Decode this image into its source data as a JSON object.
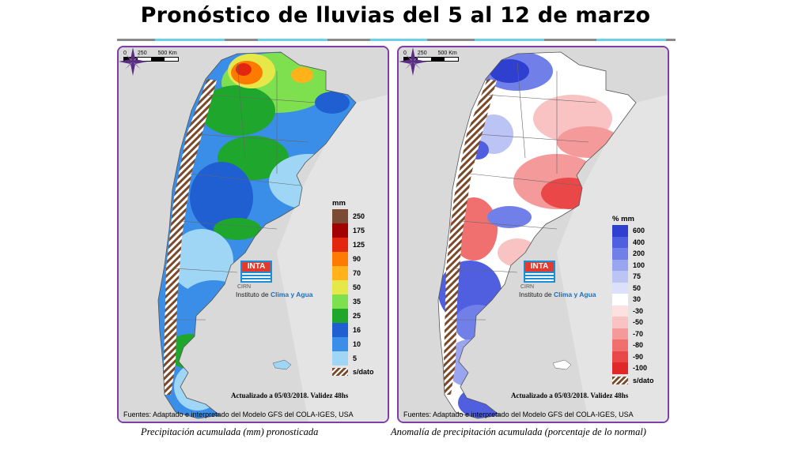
{
  "title": "Pronóstico de lluvias del 5 al 12 de marzo",
  "panels": {
    "left": {
      "scale": {
        "labels": [
          "0",
          "250",
          "500 Km"
        ]
      },
      "legend": {
        "unit": "mm",
        "items": [
          {
            "label": "250",
            "color": "#7a4a32"
          },
          {
            "label": "175",
            "color": "#a30000"
          },
          {
            "label": "125",
            "color": "#e3260e"
          },
          {
            "label": "90",
            "color": "#ff7a00"
          },
          {
            "label": "70",
            "color": "#ffb21a"
          },
          {
            "label": "50",
            "color": "#e6e84a"
          },
          {
            "label": "35",
            "color": "#7fe04f"
          },
          {
            "label": "25",
            "color": "#1fa62c"
          },
          {
            "label": "16",
            "color": "#1f5fd1"
          },
          {
            "label": "10",
            "color": "#3a8ee8"
          },
          {
            "label": "5",
            "color": "#9fd6f6"
          }
        ],
        "nodata": "s/dato"
      },
      "logo": {
        "mark": "INTA",
        "sub": "CIRN",
        "inst_prefix": "Instituto de",
        "inst_highlight": "Clima y Agua"
      },
      "updated": "Actualizado a 05/03/2018. Validez 48hs",
      "source": "Fuentes: Adaptado e interpretado del Modelo GFS del COLA-IGES, USA",
      "caption": "Precipitación acumulada (mm) pronosticada"
    },
    "right": {
      "scale": {
        "labels": [
          "0",
          "250",
          "500 Km"
        ]
      },
      "legend": {
        "unit": "% mm",
        "items": [
          {
            "label": "600",
            "color": "#2f3fd0"
          },
          {
            "label": "400",
            "color": "#4f5fe0"
          },
          {
            "label": "200",
            "color": "#7080e8"
          },
          {
            "label": "100",
            "color": "#9aa5f0"
          },
          {
            "label": "75",
            "color": "#bcc3f5"
          },
          {
            "label": "50",
            "color": "#dde0fa"
          },
          {
            "label": "30",
            "color": "#ffffff"
          },
          {
            "label": "-30",
            "color": "#fde0e0"
          },
          {
            "label": "-50",
            "color": "#f9c3c3"
          },
          {
            "label": "-70",
            "color": "#f59a9a"
          },
          {
            "label": "-80",
            "color": "#f07070"
          },
          {
            "label": "-90",
            "color": "#ea4848"
          },
          {
            "label": "-100",
            "color": "#e02828"
          }
        ],
        "nodata": "s/dato"
      },
      "logo": {
        "mark": "INTA",
        "sub": "CIRN",
        "inst_prefix": "Instituto de",
        "inst_highlight": "Clima y Agua"
      },
      "updated": "Actualizado a 05/03/2018. Validez 48hs",
      "source": "Fuentes: Adaptado e interpretado del Modelo GFS del COLA-IGES, USA",
      "caption": "Anomalía de precipitación acumulada (porcentaje de lo normal)"
    }
  }
}
